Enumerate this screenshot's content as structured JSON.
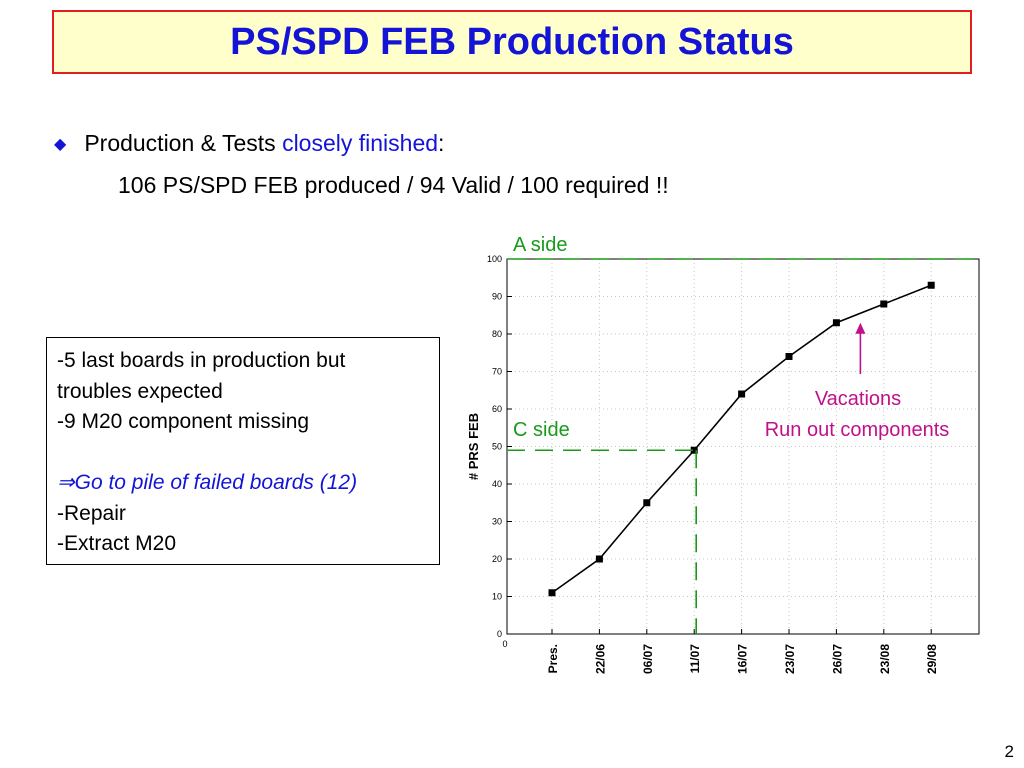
{
  "slide": {
    "title": "PS/SPD FEB Production Status",
    "bullet_prefix": "Production & Tests ",
    "bullet_highlight": "closely finished",
    "bullet_suffix": ":",
    "sub_line": "106 PS/SPD FEB produced / 94 Valid / 100 required !!",
    "page_number": "2"
  },
  "note_box": {
    "lines": [
      "-5 last boards in production but",
      "troubles expected",
      "-9 M20 component missing",
      "",
      "Go to pile of failed boards (12)",
      "-Repair",
      "-Extract M20"
    ],
    "arrow_glyph": "⇒"
  },
  "colors": {
    "title_text": "#1414d6",
    "title_bg": "#ffffcc",
    "title_border": "#e02020",
    "annotation_green": "#1a9a1a",
    "annotation_magenta": "#c0108a",
    "line": "#000000",
    "grid": "#c8c8c8"
  },
  "chart_data": {
    "type": "line",
    "categories": [
      "Pres.",
      "22/06",
      "06/07",
      "11/07",
      "16/07",
      "23/07",
      "26/07",
      "23/08",
      "29/08"
    ],
    "values": [
      11,
      20,
      35,
      49,
      64,
      74,
      83,
      88,
      93
    ],
    "ylabel": "# PRS FEB",
    "xlabel": "",
    "title": "",
    "ylim": [
      0,
      100
    ],
    "yticks": [
      0,
      10,
      20,
      30,
      40,
      50,
      60,
      70,
      80,
      90,
      100
    ],
    "x_origin_label": "0",
    "grid": true,
    "annotations": {
      "a_side_label": "A side",
      "a_side_value": 100,
      "c_side_label": "C side",
      "c_side_value": 49,
      "c_side_category": "11/07",
      "vacations_label": "Vacations",
      "run_out_label": "Run out components",
      "arrow_target_category": "26/07",
      "arrow_target_value": 83
    }
  }
}
